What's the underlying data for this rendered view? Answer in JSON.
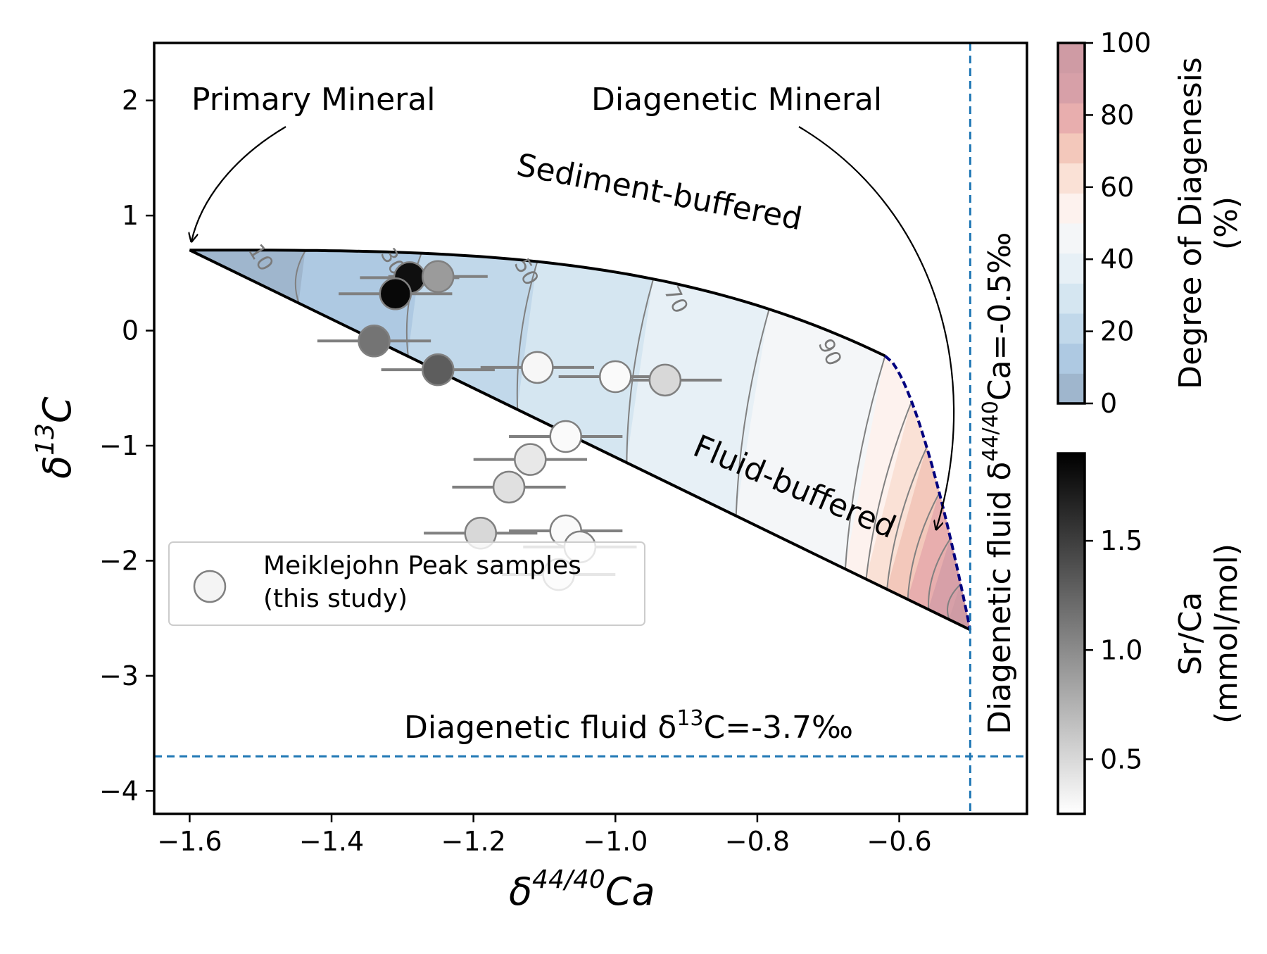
{
  "chart_data": {
    "type": "scatter",
    "xlabel_main": "δ",
    "xlabel_sup": "44/40",
    "xlabel_tail": "Ca",
    "ylabel_main": "δ",
    "ylabel_sup": "13",
    "ylabel_tail": "C",
    "xlim": [
      -1.65,
      -0.42
    ],
    "ylim": [
      -4.2,
      2.5
    ],
    "xticks": [
      -1.6,
      -1.4,
      -1.2,
      -1.0,
      -0.8,
      -0.6
    ],
    "xtick_labels": [
      "−1.6",
      "−1.4",
      "−1.2",
      "−1.0",
      "−0.8",
      "−0.6"
    ],
    "yticks": [
      2,
      1,
      0,
      -1,
      -2,
      -3,
      -4
    ],
    "ytick_labels": [
      "2",
      "1",
      "0",
      "−1",
      "−2",
      "−3",
      "−4"
    ],
    "annotations": {
      "primary_mineral": "Primary Mineral",
      "diagenetic_mineral": "Diagenetic Mineral",
      "sediment_buffered": "Sediment-buffered",
      "fluid_buffered": "Fluid-buffered",
      "fluid_c_prefix": "Diagenetic fluid δ",
      "fluid_c_sup": "13",
      "fluid_c_suffix": "C=-3.7‰",
      "fluid_ca_prefix": "Diagenetic fluid δ",
      "fluid_ca_sup": "44/40",
      "fluid_ca_suffix": "Ca=-0.5‰"
    },
    "reference_lines": {
      "fluid_d13C": -3.7,
      "fluid_d44Ca": -0.5,
      "color": "#1f77b4"
    },
    "model": {
      "primary_point": [
        -1.6,
        0.7
      ],
      "diagenetic_point": [
        -0.5,
        -2.6
      ],
      "sediment_buffered_end": [
        -0.62,
        -0.22
      ],
      "contour_labels": [
        "10",
        "30",
        "50",
        "70",
        "90"
      ]
    },
    "legend": {
      "label_line1": "Meiklejohn Peak samples",
      "label_line2": "(this study)",
      "position": "lower-left"
    },
    "colorbar_diagenesis": {
      "label_line1": "Degree of Diagenesis",
      "label_line2": "(%)",
      "ticks": [
        "0",
        "20",
        "40",
        "60",
        "80",
        "100"
      ],
      "colors": [
        "#9fb6cd",
        "#aec9e2",
        "#c1d8ea",
        "#d5e6f1",
        "#e7f0f6",
        "#f4f6f8",
        "#fdf2ee",
        "#fae1d6",
        "#f3c8bb",
        "#e8aeae",
        "#d7a0a8",
        "#cf9ba4"
      ]
    },
    "colorbar_srca": {
      "label_line1": "Sr/Ca",
      "label_line2": "(mmol/mol)",
      "range": [
        0.25,
        1.9
      ],
      "ticks": [
        0.5,
        1.0,
        1.5
      ],
      "tick_labels": [
        "0.5",
        "1.0",
        "1.5"
      ]
    },
    "points": [
      {
        "x": -1.29,
        "y": 0.46,
        "xerr": 0.07,
        "srca": 1.8
      },
      {
        "x": -1.25,
        "y": 0.47,
        "xerr": 0.07,
        "srca": 0.9
      },
      {
        "x": -1.31,
        "y": 0.32,
        "xerr": 0.08,
        "srca": 1.85
      },
      {
        "x": -1.34,
        "y": -0.09,
        "xerr": 0.08,
        "srca": 1.15
      },
      {
        "x": -1.25,
        "y": -0.34,
        "xerr": 0.08,
        "srca": 1.3
      },
      {
        "x": -1.11,
        "y": -0.32,
        "xerr": 0.08,
        "srca": 0.3
      },
      {
        "x": -1.0,
        "y": -0.4,
        "xerr": 0.08,
        "srca": 0.28
      },
      {
        "x": -0.93,
        "y": -0.43,
        "xerr": 0.08,
        "srca": 0.5
      },
      {
        "x": -1.07,
        "y": -0.92,
        "xerr": 0.08,
        "srca": 0.28
      },
      {
        "x": -1.12,
        "y": -1.12,
        "xerr": 0.08,
        "srca": 0.4
      },
      {
        "x": -1.15,
        "y": -1.36,
        "xerr": 0.08,
        "srca": 0.45
      },
      {
        "x": -1.19,
        "y": -1.76,
        "xerr": 0.08,
        "srca": 0.5
      },
      {
        "x": -1.07,
        "y": -1.74,
        "xerr": 0.08,
        "srca": 0.28
      },
      {
        "x": -1.05,
        "y": -1.88,
        "xerr": 0.08,
        "srca": 0.3
      },
      {
        "x": -1.08,
        "y": -2.12,
        "xerr": 0.08,
        "srca": 0.35
      }
    ]
  }
}
